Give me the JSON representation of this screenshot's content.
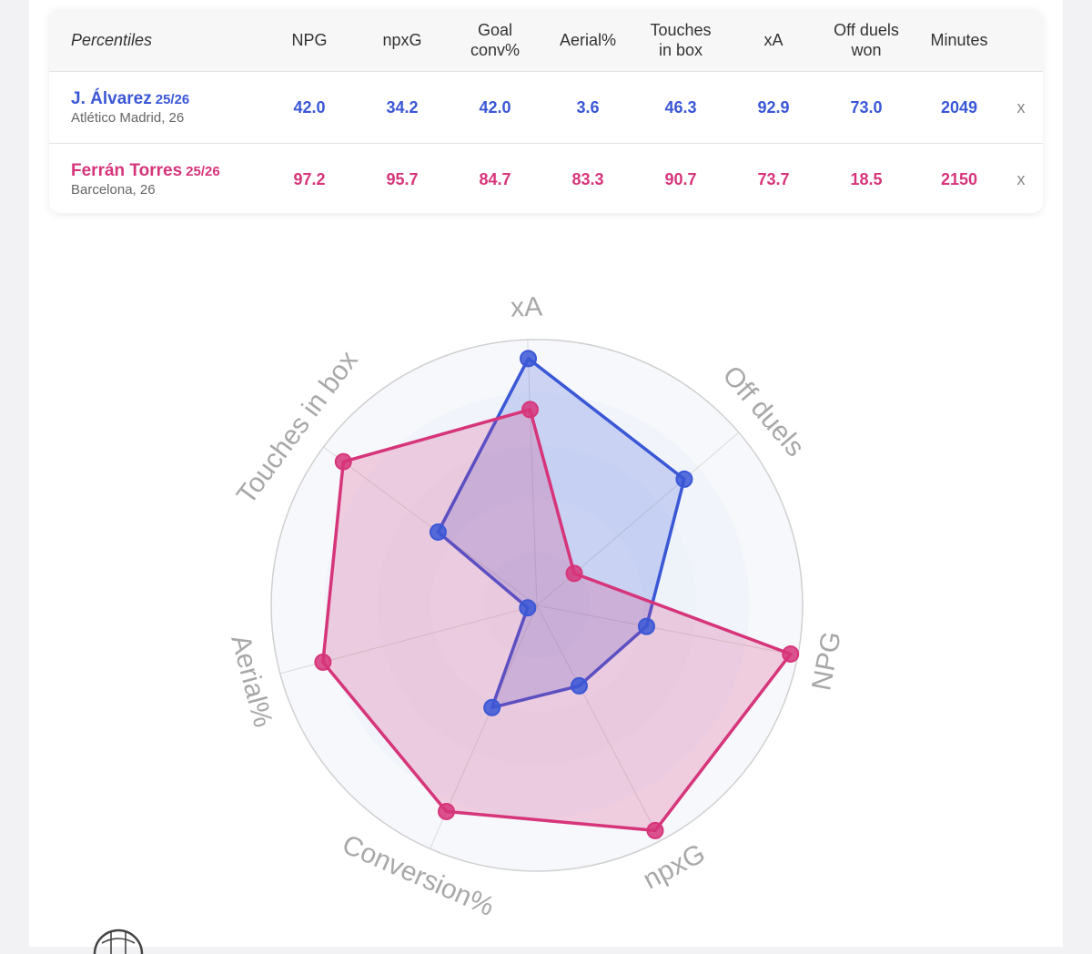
{
  "table": {
    "header_label": "Percentiles",
    "columns": [
      "NPG",
      "npxG",
      "Goal\nconv%",
      "Aerial%",
      "Touches\nin box",
      "xA",
      "Off duels\nwon",
      "Minutes"
    ],
    "remove_label": "x",
    "rows": [
      {
        "name": "J. Álvarez",
        "season": "25/26",
        "club": "Atlético Madrid, 26",
        "values": [
          "42.0",
          "34.2",
          "42.0",
          "3.6",
          "46.3",
          "92.9",
          "73.0",
          "2049"
        ]
      },
      {
        "name": "Ferrán Torres",
        "season": "25/26",
        "club": "Barcelona, 26",
        "values": [
          "97.2",
          "95.7",
          "84.7",
          "83.3",
          "90.7",
          "73.7",
          "18.5",
          "2150"
        ]
      }
    ]
  },
  "colors": {
    "blue": "#3a57d6",
    "pink": "#d6357a"
  },
  "chart_data": {
    "type": "radar",
    "axes": [
      "xA",
      "Off duels",
      "NPG",
      "npxG",
      "Conversion%",
      "Aerial%",
      "Touches in box"
    ],
    "range": [
      0,
      100
    ],
    "series": [
      {
        "name": "J. Álvarez",
        "color": "#3a57d6",
        "values": [
          92.9,
          73.0,
          42.0,
          34.2,
          42.0,
          3.6,
          46.3
        ]
      },
      {
        "name": "Ferrán Torres",
        "color": "#d6357a",
        "values": [
          73.7,
          18.5,
          97.2,
          95.7,
          84.7,
          83.3,
          90.7
        ]
      }
    ]
  }
}
